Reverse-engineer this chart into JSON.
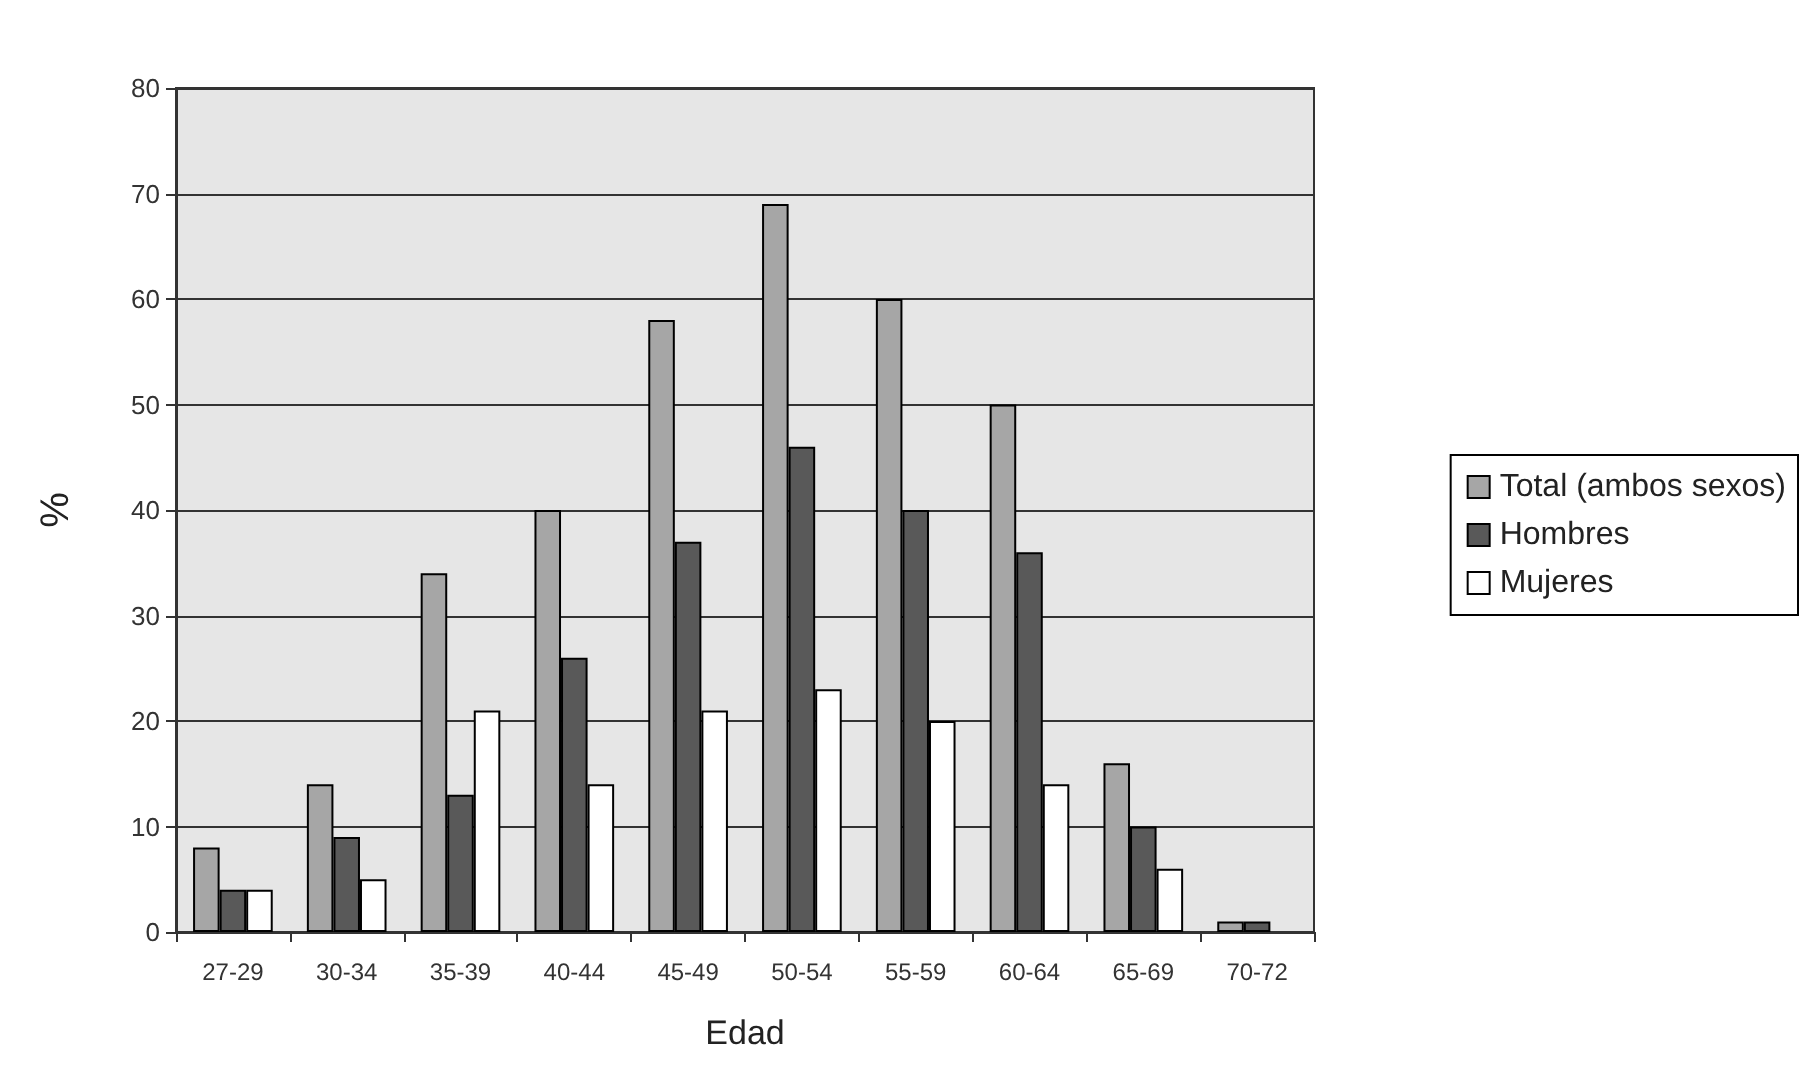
{
  "chart_data": {
    "type": "bar",
    "xlabel": "Edad",
    "ylabel": "%",
    "categories": [
      "27-29",
      "30-34",
      "35-39",
      "40-44",
      "45-49",
      "50-54",
      "55-59",
      "60-64",
      "65-69",
      "70-72"
    ],
    "series": [
      {
        "name": "Total (ambos sexos)",
        "color": "#a6a6a6",
        "values": [
          8,
          14,
          34,
          40,
          58,
          69,
          60,
          50,
          16,
          1
        ]
      },
      {
        "name": "Hombres",
        "color": "#595959",
        "values": [
          4,
          9,
          13,
          26,
          37,
          46,
          40,
          36,
          10,
          1
        ]
      },
      {
        "name": "Mujeres",
        "color": "#ffffff",
        "values": [
          4,
          5,
          21,
          14,
          21,
          23,
          20,
          14,
          6,
          null
        ]
      }
    ],
    "ylim": [
      0,
      80
    ],
    "yticks": [
      0,
      10,
      20,
      30,
      40,
      50,
      60,
      70,
      80
    ],
    "grid": "y",
    "legend": "right"
  }
}
